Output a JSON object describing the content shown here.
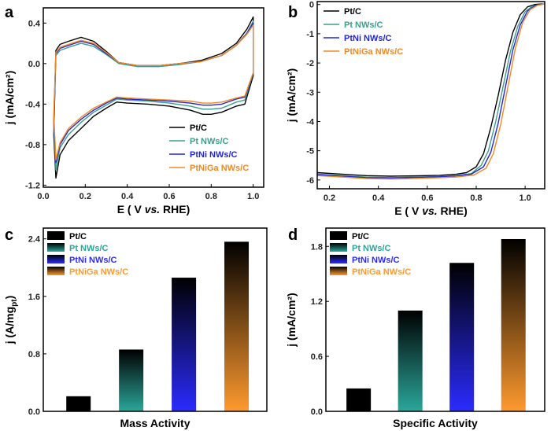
{
  "chart_data": [
    {
      "panel": "a",
      "type": "line",
      "xlabel": "E ( V vs. RHE)",
      "ylabel": "j (mA/cm²)",
      "xlim": [
        0.0,
        1.05
      ],
      "ylim": [
        -1.22,
        0.55
      ],
      "xticks": [
        "0.0",
        "0.2",
        "0.4",
        "0.6",
        "0.8",
        "1.0"
      ],
      "yticks": [
        "-1.2",
        "-0.8",
        "-0.4",
        "0.0",
        "0.4"
      ],
      "legend": "bottom-right",
      "series": [
        {
          "name": "Pt/C",
          "color": "#000000",
          "x": [
            0.05,
            0.06,
            0.08,
            0.12,
            0.18,
            0.24,
            0.3,
            0.36,
            0.45,
            0.55,
            0.65,
            0.75,
            0.85,
            0.92,
            0.97,
            1.0,
            1.0,
            0.96,
            0.92,
            0.85,
            0.8,
            0.76,
            0.7,
            0.6,
            0.5,
            0.4,
            0.35,
            0.3,
            0.24,
            0.18,
            0.12,
            0.08,
            0.06,
            0.05
          ],
          "y": [
            -0.7,
            0.13,
            0.19,
            0.22,
            0.26,
            0.22,
            0.12,
            0.01,
            -0.02,
            -0.02,
            0.0,
            0.03,
            0.1,
            0.2,
            0.34,
            0.46,
            -0.12,
            -0.4,
            -0.42,
            -0.48,
            -0.5,
            -0.5,
            -0.46,
            -0.42,
            -0.4,
            -0.39,
            -0.38,
            -0.44,
            -0.52,
            -0.64,
            -0.76,
            -0.9,
            -1.13,
            -0.7
          ]
        },
        {
          "name": "Pt NWs/C",
          "color": "#3aa08c",
          "x": [
            0.05,
            0.06,
            0.08,
            0.12,
            0.18,
            0.24,
            0.3,
            0.36,
            0.45,
            0.55,
            0.65,
            0.75,
            0.85,
            0.92,
            0.97,
            1.0,
            1.0,
            0.96,
            0.92,
            0.85,
            0.8,
            0.76,
            0.7,
            0.6,
            0.5,
            0.4,
            0.35,
            0.3,
            0.24,
            0.18,
            0.12,
            0.08,
            0.06,
            0.05
          ],
          "y": [
            -0.6,
            0.08,
            0.13,
            0.16,
            0.2,
            0.17,
            0.09,
            0.0,
            -0.03,
            -0.03,
            -0.01,
            0.02,
            0.08,
            0.18,
            0.3,
            0.42,
            -0.1,
            -0.36,
            -0.38,
            -0.44,
            -0.45,
            -0.45,
            -0.42,
            -0.39,
            -0.37,
            -0.36,
            -0.35,
            -0.41,
            -0.48,
            -0.58,
            -0.7,
            -0.83,
            -1.05,
            -0.6
          ]
        },
        {
          "name": "PtNi NWs/C",
          "color": "#2525d8",
          "x": [
            0.05,
            0.06,
            0.08,
            0.12,
            0.18,
            0.24,
            0.3,
            0.36,
            0.45,
            0.55,
            0.65,
            0.75,
            0.85,
            0.92,
            0.97,
            1.0,
            1.0,
            0.96,
            0.92,
            0.85,
            0.8,
            0.76,
            0.7,
            0.6,
            0.5,
            0.4,
            0.35,
            0.3,
            0.24,
            0.18,
            0.12,
            0.08,
            0.06,
            0.05
          ],
          "y": [
            -0.55,
            0.1,
            0.15,
            0.18,
            0.22,
            0.19,
            0.1,
            0.01,
            -0.02,
            -0.02,
            0.0,
            0.02,
            0.08,
            0.18,
            0.3,
            0.4,
            -0.1,
            -0.33,
            -0.35,
            -0.4,
            -0.41,
            -0.41,
            -0.39,
            -0.37,
            -0.36,
            -0.35,
            -0.34,
            -0.39,
            -0.46,
            -0.55,
            -0.66,
            -0.8,
            -0.98,
            -0.55
          ]
        },
        {
          "name": "PtNiGa NWs/C",
          "color": "#f08a24",
          "x": [
            0.05,
            0.06,
            0.08,
            0.12,
            0.18,
            0.24,
            0.3,
            0.36,
            0.45,
            0.55,
            0.65,
            0.75,
            0.85,
            0.92,
            0.97,
            1.0,
            1.0,
            0.96,
            0.92,
            0.85,
            0.8,
            0.76,
            0.7,
            0.6,
            0.5,
            0.4,
            0.35,
            0.3,
            0.24,
            0.18,
            0.12,
            0.08,
            0.06,
            0.05
          ],
          "y": [
            -0.5,
            0.11,
            0.16,
            0.19,
            0.23,
            0.2,
            0.11,
            0.01,
            -0.02,
            -0.02,
            0.0,
            0.02,
            0.08,
            0.18,
            0.29,
            0.38,
            -0.09,
            -0.32,
            -0.34,
            -0.38,
            -0.39,
            -0.39,
            -0.37,
            -0.36,
            -0.35,
            -0.34,
            -0.33,
            -0.38,
            -0.44,
            -0.53,
            -0.64,
            -0.78,
            -0.95,
            -0.5
          ]
        }
      ]
    },
    {
      "panel": "b",
      "type": "line",
      "xlabel": "E ( V vs. RHE)",
      "ylabel": "j (mA/cm²)",
      "xlim": [
        0.15,
        1.08
      ],
      "ylim": [
        -6.3,
        0.1
      ],
      "xticks": [
        "0.2",
        "0.4",
        "0.6",
        "0.8",
        "1.0"
      ],
      "yticks": [
        "-6",
        "-5",
        "-4",
        "-3",
        "-2",
        "-1",
        "0"
      ],
      "legend": "top-left",
      "series": [
        {
          "name": "Pt/C",
          "color": "#000000",
          "x": [
            0.15,
            0.25,
            0.35,
            0.45,
            0.55,
            0.65,
            0.72,
            0.76,
            0.8,
            0.83,
            0.86,
            0.89,
            0.92,
            0.95,
            0.98,
            1.01,
            1.04,
            1.07
          ],
          "y": [
            -5.75,
            -5.8,
            -5.85,
            -5.87,
            -5.86,
            -5.84,
            -5.8,
            -5.75,
            -5.55,
            -5.1,
            -4.2,
            -3.1,
            -1.9,
            -0.95,
            -0.35,
            -0.08,
            0.0,
            0.02
          ]
        },
        {
          "name": "Pt NWs/C",
          "color": "#3aa08c",
          "x": [
            0.15,
            0.25,
            0.35,
            0.45,
            0.55,
            0.65,
            0.72,
            0.78,
            0.82,
            0.85,
            0.88,
            0.91,
            0.94,
            0.97,
            1.0,
            1.03,
            1.06,
            1.08
          ],
          "y": [
            -5.8,
            -5.85,
            -5.9,
            -5.92,
            -5.9,
            -5.88,
            -5.85,
            -5.78,
            -5.5,
            -5.0,
            -4.0,
            -2.8,
            -1.6,
            -0.75,
            -0.25,
            -0.05,
            0.0,
            0.02
          ]
        },
        {
          "name": "PtNi NWs/C",
          "color": "#2525d8",
          "x": [
            0.15,
            0.25,
            0.35,
            0.45,
            0.55,
            0.65,
            0.72,
            0.78,
            0.83,
            0.86,
            0.89,
            0.92,
            0.95,
            0.98,
            1.01,
            1.04,
            1.06,
            1.08
          ],
          "y": [
            -5.82,
            -5.87,
            -5.92,
            -5.93,
            -5.91,
            -5.89,
            -5.86,
            -5.8,
            -5.55,
            -5.05,
            -4.05,
            -2.8,
            -1.55,
            -0.7,
            -0.22,
            -0.04,
            0.0,
            0.02
          ]
        },
        {
          "name": "PtNiGa NWs/C",
          "color": "#f08a24",
          "x": [
            0.15,
            0.25,
            0.35,
            0.45,
            0.55,
            0.65,
            0.72,
            0.79,
            0.84,
            0.87,
            0.9,
            0.93,
            0.96,
            0.99,
            1.02,
            1.05,
            1.07,
            1.08
          ],
          "y": [
            -5.85,
            -5.9,
            -5.95,
            -5.97,
            -5.95,
            -5.92,
            -5.9,
            -5.83,
            -5.6,
            -5.1,
            -4.1,
            -2.8,
            -1.5,
            -0.62,
            -0.18,
            -0.03,
            0.0,
            0.02
          ]
        }
      ]
    },
    {
      "panel": "c",
      "type": "bar",
      "xlabel": "Mass Activity",
      "ylabel": "j (A/mg",
      "ylabel_sub": "pt",
      "ylabel_end": ")",
      "ylim": [
        0,
        2.55
      ],
      "yticks": [
        "0.0",
        "0.8",
        "1.6",
        "2.4"
      ],
      "legend": "top-left",
      "categories": [
        "Pt/C",
        "Pt NWs/C",
        "PtNi NWs/C",
        "PtNiGa NWs/C"
      ],
      "values": [
        0.21,
        0.86,
        1.86,
        2.36
      ],
      "colors": [
        "#000000",
        "#2aa79b",
        "#2b2bff",
        "#ff9a2e"
      ]
    },
    {
      "panel": "d",
      "type": "bar",
      "xlabel": "Specific Activity",
      "ylabel": "j (mA/cm²)",
      "ylim": [
        0,
        2.0
      ],
      "yticks": [
        "0.0",
        "0.6",
        "1.2",
        "1.8"
      ],
      "legend": "top-left",
      "categories": [
        "Pt/C",
        "Pt NWs/C",
        "PtNi NWs/C",
        "PtNiGa NWs/C"
      ],
      "values": [
        0.25,
        1.1,
        1.62,
        1.88
      ],
      "colors": [
        "#000000",
        "#2aa79b",
        "#2b2bff",
        "#ff9a2e"
      ]
    }
  ]
}
